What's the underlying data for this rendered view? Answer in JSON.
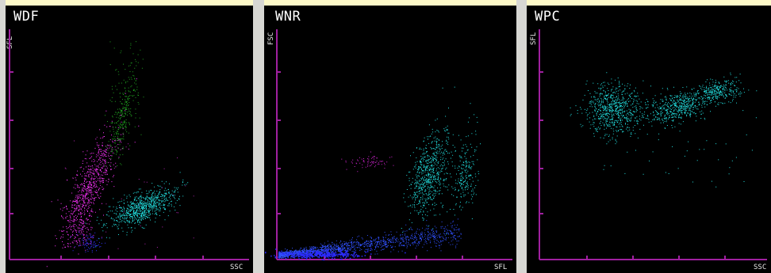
{
  "background_color": "#fdf9c8",
  "axis_color": "#a020a0",
  "panels": [
    {
      "id": "wdf",
      "title": "WDF",
      "y_axis_label": "SFL",
      "x_axis_label": "SSC",
      "clusters": [
        {
          "color": "#ff33ff",
          "description": "magenta elongated cluster lower-left"
        },
        {
          "color": "#20a020",
          "description": "green cluster upper-middle"
        },
        {
          "color": "#22e0e0",
          "description": "cyan cluster lower-middle"
        },
        {
          "color": "#3333ff",
          "description": "blue sparse cluster bottom"
        }
      ]
    },
    {
      "id": "wnr",
      "title": "WNR",
      "y_axis_label": "FSC",
      "x_axis_label": "SFL",
      "clusters": [
        {
          "color": "#3050ff",
          "description": "blue band along bottom"
        },
        {
          "color": "#22e0e0",
          "description": "cyan vertical cluster center-right"
        },
        {
          "color": "#cc22cc",
          "description": "small magenta cluster center"
        }
      ]
    },
    {
      "id": "wpc",
      "title": "WPC",
      "y_axis_label": "SFL",
      "x_axis_label": "SSC",
      "clusters": [
        {
          "color": "#22e0e0",
          "description": "cyan clusters upper area"
        }
      ]
    }
  ]
}
